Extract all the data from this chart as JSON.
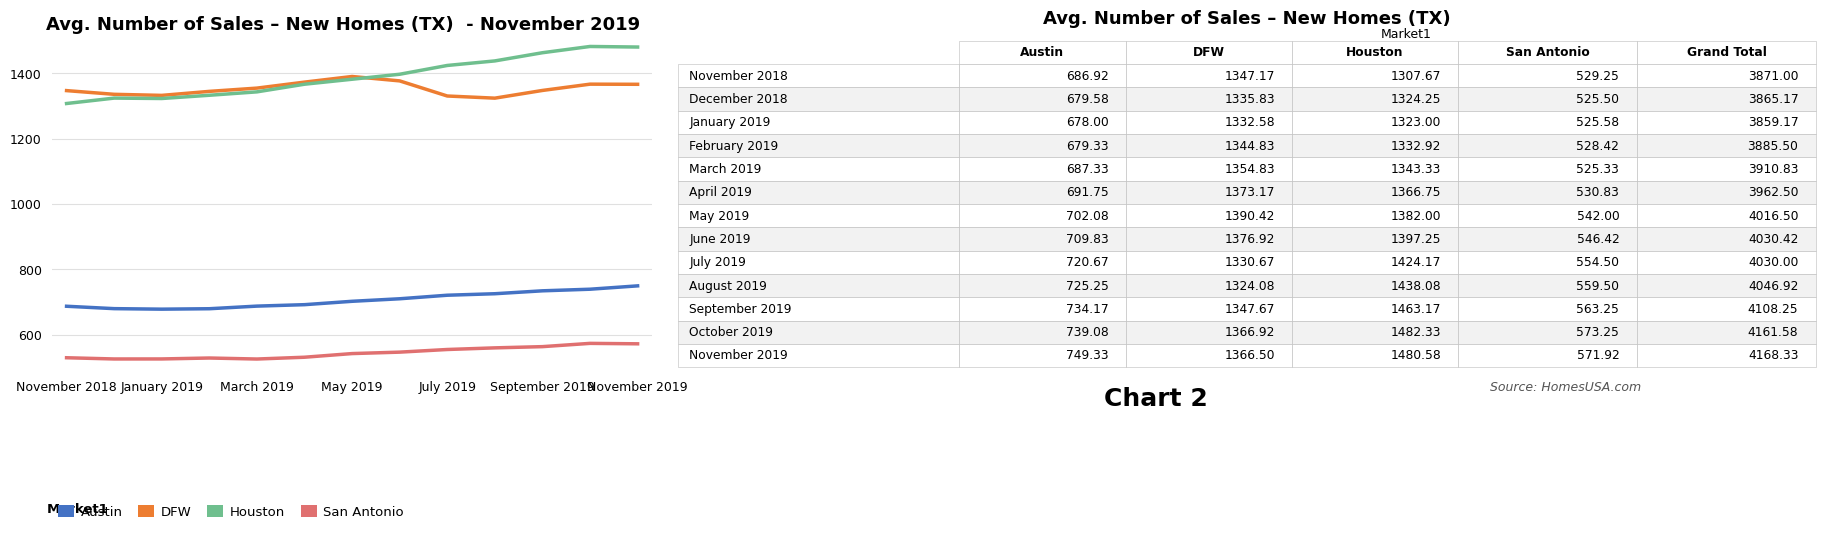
{
  "chart_title": "Avg. Number of Sales – New Homes (TX)  - November 2019",
  "table_title": "Avg. Number of Sales – New Homes (TX)",
  "months": [
    "November 2018",
    "December 2018",
    "January 2019",
    "February 2019",
    "March 2019",
    "April 2019",
    "May 2019",
    "June 2019",
    "July 2019",
    "August 2019",
    "September 2019",
    "October 2019",
    "November 2019"
  ],
  "austin": [
    686.92,
    679.58,
    678.0,
    679.33,
    687.33,
    691.75,
    702.08,
    709.83,
    720.67,
    725.25,
    734.17,
    739.08,
    749.33
  ],
  "dfw": [
    1347.17,
    1335.83,
    1332.58,
    1344.83,
    1354.83,
    1373.17,
    1390.42,
    1376.92,
    1330.67,
    1324.08,
    1347.67,
    1366.92,
    1366.5
  ],
  "houston": [
    1307.67,
    1324.25,
    1323.0,
    1332.92,
    1343.33,
    1366.75,
    1382.0,
    1397.25,
    1424.17,
    1438.08,
    1463.17,
    1482.33,
    1480.58
  ],
  "san_antonio": [
    529.25,
    525.5,
    525.58,
    528.42,
    525.33,
    530.83,
    542.0,
    546.42,
    554.5,
    559.5,
    563.25,
    573.25,
    571.92
  ],
  "grand_total": [
    3871.0,
    3865.17,
    3859.17,
    3885.5,
    3910.83,
    3962.5,
    4016.5,
    4030.42,
    4030.0,
    4046.92,
    4108.25,
    4161.58,
    4168.33
  ],
  "austin_color": "#4472c4",
  "dfw_color": "#ed7d31",
  "houston_color": "#6fbf8e",
  "san_antonio_color": "#e07070",
  "line_width": 2.5,
  "x_tick_labels": [
    "November 2018",
    "January 2019",
    "March 2019",
    "May 2019",
    "July 2019",
    "September 2019",
    "November 2019"
  ],
  "x_tick_indices": [
    0,
    2,
    4,
    6,
    8,
    10,
    12
  ],
  "ylim": [
    500,
    1500
  ],
  "yticks": [
    600,
    800,
    1000,
    1200,
    1400
  ],
  "background_color": "#ffffff",
  "grid_color": "#e0e0e0",
  "chart2_label": "Chart 2",
  "source_label": "Source: HomesUSA.com",
  "col_headers": [
    "",
    "Austin",
    "DFW",
    "Houston",
    "San Antonio",
    "Grand Total"
  ],
  "col_widths": [
    0.22,
    0.13,
    0.13,
    0.13,
    0.14,
    0.14
  ]
}
